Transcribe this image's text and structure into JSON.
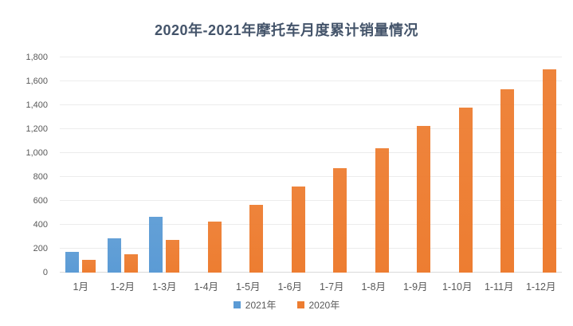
{
  "title": "2020年-2021年摩托车月度累计销量情况",
  "chart_data": {
    "type": "bar",
    "title": "2020年-2021年摩托车月度累计销量情况",
    "categories": [
      "1月",
      "1-2月",
      "1-3月",
      "1-4月",
      "1-5月",
      "1-6月",
      "1-7月",
      "1-8月",
      "1-9月",
      "1-10月",
      "1-11月",
      "1-12月"
    ],
    "series": [
      {
        "name": "2021年",
        "color": "#5B9BD5",
        "values": [
          175,
          284,
          465,
          null,
          null,
          null,
          null,
          null,
          null,
          null,
          null,
          null
        ]
      },
      {
        "name": "2020年",
        "color": "#ED7D31",
        "values": [
          104,
          151,
          272,
          430,
          570,
          717,
          875,
          1039,
          1226,
          1378,
          1535,
          1702
        ]
      }
    ],
    "ylim": [
      0,
      1800
    ],
    "ytick_step": 200,
    "ytick_labels": [
      "0",
      "200",
      "400",
      "600",
      "800",
      "1,000",
      "1,200",
      "1,400",
      "1,600",
      "1,800"
    ],
    "grid": true,
    "legend_position": "bottom"
  },
  "colors": {
    "title": "#44546A",
    "axis_label": "#595959",
    "gridline": "#ECECEC",
    "axis_line": "#D9D9D9",
    "background": "#FFFFFF"
  }
}
